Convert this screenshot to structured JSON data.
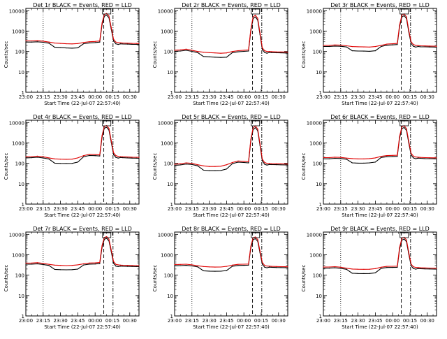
{
  "chart_data": {
    "type": "line",
    "yscale": "log",
    "ylabel": "Counts/sec",
    "xlabel": "Start Time (22-Jul-07 22:57:40)",
    "yticks": [
      1,
      10,
      100,
      1000,
      10000
    ],
    "ytick_labels": [
      "1",
      "10",
      "100",
      "1000",
      "10000"
    ],
    "xtick_labels": [
      "23:00",
      "23:15",
      "23:30",
      "23:45",
      "00:00",
      "00:15",
      "00:30"
    ],
    "xtick_minutes": [
      0,
      15,
      30,
      45,
      60,
      75,
      90
    ],
    "xlim_minutes": [
      0,
      98
    ],
    "ylim": [
      1,
      13000
    ],
    "x_minutes": [
      0,
      5,
      10,
      15,
      20,
      25,
      30,
      35,
      40,
      45,
      50,
      55,
      60,
      64,
      66,
      68,
      70,
      72,
      74,
      76,
      78,
      80,
      82,
      84,
      88,
      92,
      96,
      98
    ],
    "event_window_minutes": [
      20,
      47
    ],
    "vertical_markers_minutes": [
      67.5,
      75.5
    ],
    "dotted_marker_minutes": [
      15
    ],
    "series_colors": {
      "events": "#000000",
      "lld": "#e00000"
    },
    "panels": [
      {
        "title": "Det 1r BLACK = Events, RED = LLD",
        "lld": [
          330,
          330,
          340,
          320,
          290,
          260,
          250,
          240,
          235,
          245,
          275,
          300,
          310,
          330,
          2500,
          6500,
          7300,
          5500,
          1500,
          400,
          290,
          270,
          265,
          260,
          255,
          250,
          248,
          245
        ]
      },
      {
        "title": "Det 2r BLACK = Events, RED = LLD",
        "lld": [
          115,
          120,
          130,
          115,
          100,
          92,
          88,
          85,
          82,
          85,
          100,
          110,
          115,
          120,
          1200,
          5000,
          6000,
          4200,
          800,
          150,
          110,
          100,
          100,
          98,
          96,
          95,
          94,
          93
        ]
      },
      {
        "title": "Det 3r BLACK = Events, RED = LLD",
        "lld": [
          200,
          200,
          210,
          205,
          190,
          175,
          170,
          168,
          165,
          175,
          200,
          230,
          240,
          250,
          2000,
          6000,
          7000,
          5000,
          1100,
          300,
          220,
          200,
          195,
          190,
          188,
          185,
          183,
          180
        ]
      },
      {
        "title": "Det 4r BLACK = Events, RED = LLD",
        "lld": [
          210,
          215,
          225,
          210,
          185,
          165,
          160,
          158,
          160,
          185,
          240,
          275,
          270,
          260,
          2300,
          6500,
          7100,
          5200,
          1300,
          330,
          240,
          220,
          215,
          210,
          205,
          200,
          198,
          196
        ]
      },
      {
        "title": "Det 5r BLACK = Events, RED = LLD",
        "lld": [
          90,
          95,
          105,
          100,
          85,
          75,
          70,
          70,
          72,
          85,
          110,
          130,
          125,
          120,
          1500,
          5500,
          6800,
          4800,
          900,
          160,
          110,
          100,
          98,
          96,
          95,
          94,
          93,
          92
        ]
      },
      {
        "title": "Det 6r BLACK = Events, RED = LLD",
        "lld": [
          190,
          190,
          200,
          195,
          180,
          170,
          165,
          165,
          170,
          185,
          220,
          240,
          245,
          250,
          2100,
          6200,
          7000,
          5000,
          1200,
          310,
          225,
          205,
          200,
          195,
          190,
          188,
          186,
          184
        ]
      },
      {
        "title": "Det 7r BLACK = Events, RED = LLD",
        "lld": [
          390,
          395,
          410,
          380,
          340,
          310,
          300,
          295,
          300,
          320,
          360,
          395,
          400,
          420,
          2800,
          7000,
          7800,
          5800,
          1700,
          470,
          340,
          320,
          310,
          305,
          300,
          296,
          293,
          290
        ]
      },
      {
        "title": "Det 8r BLACK = Events, RED = LLD",
        "lld": [
          330,
          335,
          345,
          320,
          290,
          265,
          255,
          250,
          252,
          270,
          310,
          340,
          345,
          350,
          2600,
          6800,
          7500,
          5600,
          1500,
          420,
          300,
          280,
          275,
          270,
          265,
          262,
          260,
          258
        ]
      },
      {
        "title": "Det 9r BLACK = Events, RED = LLD",
        "lld": [
          250,
          252,
          262,
          245,
          220,
          200,
          195,
          193,
          195,
          210,
          245,
          270,
          272,
          275,
          2300,
          6400,
          7200,
          5300,
          1300,
          350,
          260,
          240,
          235,
          230,
          226,
          223,
          220,
          218
        ]
      }
    ]
  }
}
